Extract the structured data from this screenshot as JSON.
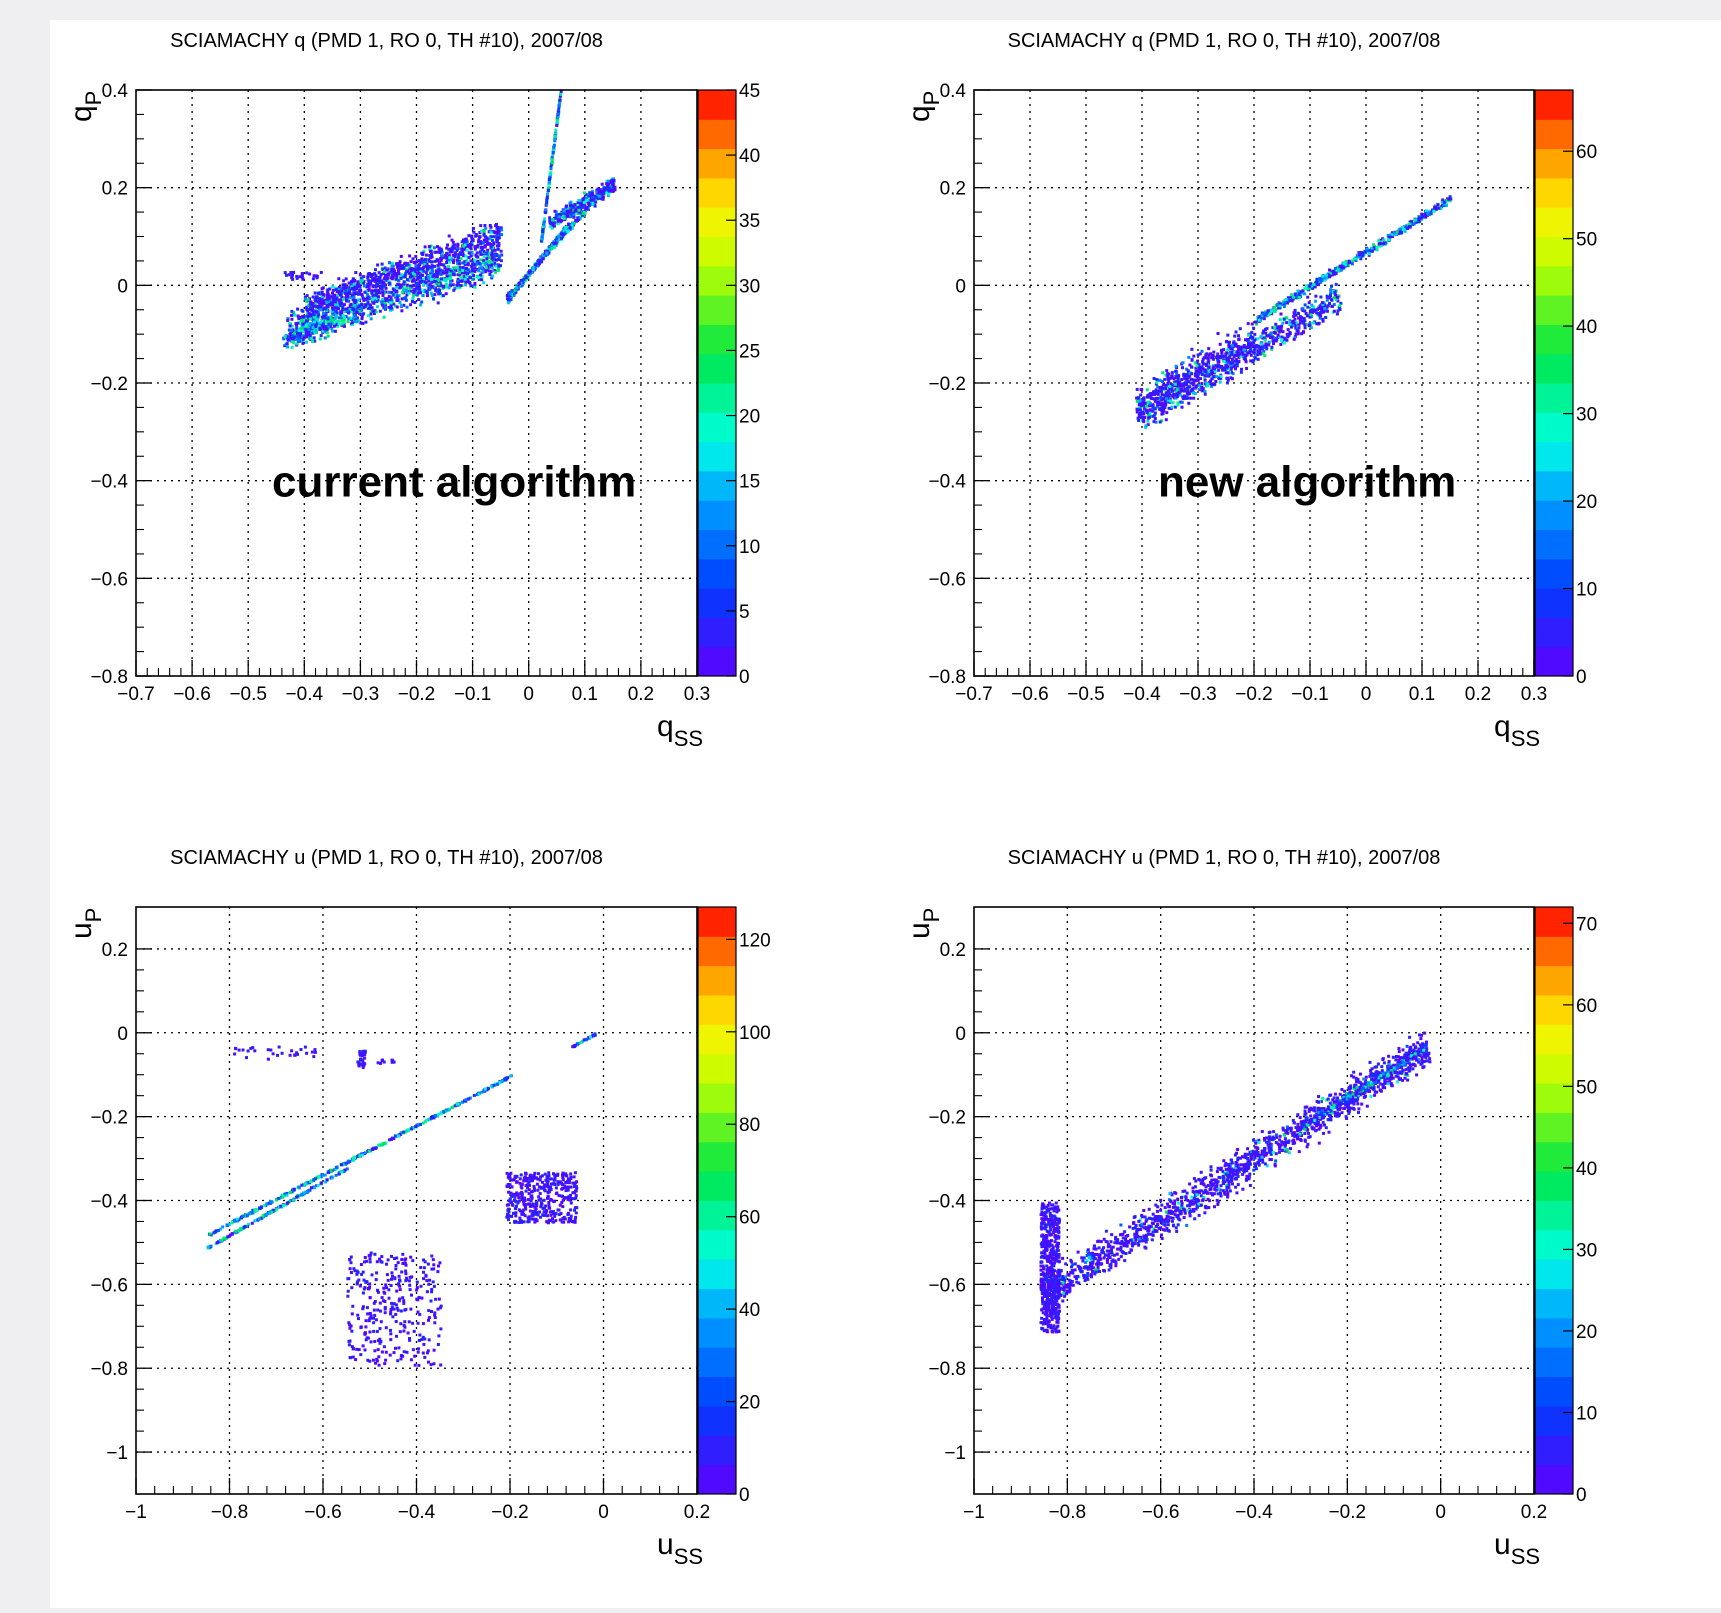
{
  "chart_data": [
    {
      "type": "heatmap",
      "title": "SCIAMACHY q (PMD 1, RO 0, TH #10), 2007/08",
      "ylabel": "q",
      "ylabel_sub": "P",
      "xlabel": "q",
      "xlabel_sub": "SS",
      "annotation": "current algorithm",
      "xlim": [
        -0.7,
        0.3
      ],
      "ylim": [
        -0.8,
        0.4
      ],
      "xticks": [
        -0.7,
        -0.6,
        -0.5,
        -0.4,
        -0.3,
        -0.2,
        -0.1,
        0,
        0.1,
        0.2,
        0.3
      ],
      "xtick_labels": [
        "−0.7",
        "−0.6",
        "−0.5",
        "−0.4",
        "−0.3",
        "−0.2",
        "−0.1",
        "0",
        "0.1",
        "0.2",
        "0.3"
      ],
      "yticks": [
        -0.8,
        -0.6,
        -0.4,
        -0.2,
        0,
        0.2,
        0.4
      ],
      "ytick_labels": [
        "−0.8",
        "−0.6",
        "−0.4",
        "−0.2",
        "0",
        "0.2",
        "0.4"
      ],
      "grid": true,
      "colorbar": {
        "min": 0,
        "max": 45,
        "ticks": [
          0,
          5,
          10,
          15,
          20,
          25,
          30,
          35,
          40,
          45
        ],
        "tick_labels": [
          "0",
          "5",
          "10",
          "15",
          "20",
          "25",
          "30",
          "35",
          "40",
          "45"
        ]
      },
      "clusters": [
        {
          "shape": "band",
          "x1": -0.43,
          "y1": -0.09,
          "x2": -0.05,
          "y2": 0.06,
          "width": 0.055,
          "n": 900,
          "core": 0.5
        },
        {
          "shape": "band",
          "x1": -0.4,
          "y1": -0.04,
          "x2": -0.05,
          "y2": 0.11,
          "width": 0.04,
          "n": 700,
          "core": 0.2
        },
        {
          "shape": "band",
          "x1": -0.44,
          "y1": -0.11,
          "x2": -0.3,
          "y2": -0.05,
          "width": 0.03,
          "n": 200,
          "core": 0.6
        },
        {
          "shape": "box",
          "x1": -0.44,
          "x2": -0.37,
          "y1": 0.015,
          "y2": 0.03,
          "n": 25,
          "core": 0.0
        },
        {
          "shape": "band",
          "x1": -0.04,
          "y1": -0.03,
          "x2": 0.07,
          "y2": 0.13,
          "width": 0.008,
          "n": 220,
          "core": 0.7
        },
        {
          "shape": "band",
          "x1": -0.04,
          "y1": -0.02,
          "x2": 0.15,
          "y2": 0.22,
          "width": 0.008,
          "n": 240,
          "core": 0.7
        },
        {
          "shape": "band",
          "x1": 0.02,
          "y1": 0.09,
          "x2": 0.055,
          "y2": 0.4,
          "width": 0.003,
          "n": 150,
          "core": 0.7
        },
        {
          "shape": "band",
          "x1": 0.035,
          "y1": 0.13,
          "x2": 0.15,
          "y2": 0.21,
          "width": 0.025,
          "n": 300,
          "core": 0.4
        }
      ]
    },
    {
      "type": "heatmap",
      "title": "SCIAMACHY q (PMD 1, RO 0, TH #10), 2007/08",
      "ylabel": "q",
      "ylabel_sub": "P",
      "xlabel": "q",
      "xlabel_sub": "SS",
      "annotation": "new algorithm",
      "xlim": [
        -0.7,
        0.3
      ],
      "ylim": [
        -0.8,
        0.4
      ],
      "xticks": [
        -0.7,
        -0.6,
        -0.5,
        -0.4,
        -0.3,
        -0.2,
        -0.1,
        0,
        0.1,
        0.2,
        0.3
      ],
      "xtick_labels": [
        "−0.7",
        "−0.6",
        "−0.5",
        "−0.4",
        "−0.3",
        "−0.2",
        "−0.1",
        "0",
        "0.1",
        "0.2",
        "0.3"
      ],
      "yticks": [
        -0.8,
        -0.6,
        -0.4,
        -0.2,
        0,
        0.2,
        0.4
      ],
      "ytick_labels": [
        "−0.8",
        "−0.6",
        "−0.4",
        "−0.2",
        "0",
        "0.2",
        "0.4"
      ],
      "grid": true,
      "colorbar": {
        "min": 0,
        "max": 67,
        "ticks": [
          0,
          10,
          20,
          30,
          40,
          50,
          60
        ],
        "tick_labels": [
          "0",
          "10",
          "20",
          "30",
          "40",
          "50",
          "60"
        ]
      },
      "clusters": [
        {
          "shape": "band",
          "x1": -0.41,
          "y1": -0.27,
          "x2": -0.05,
          "y2": -0.02,
          "width": 0.05,
          "n": 700,
          "core": 0.3
        },
        {
          "shape": "band",
          "x1": -0.41,
          "y1": -0.24,
          "x2": -0.2,
          "y2": -0.1,
          "width": 0.06,
          "n": 350,
          "core": 0.2
        },
        {
          "shape": "band",
          "x1": -0.2,
          "y1": -0.07,
          "x2": 0.15,
          "y2": 0.18,
          "width": 0.012,
          "n": 450,
          "core": 0.6
        }
      ]
    },
    {
      "type": "heatmap",
      "title": "SCIAMACHY u (PMD 1, RO 0, TH #10), 2007/08",
      "ylabel": "u",
      "ylabel_sub": "P",
      "xlabel": "u",
      "xlabel_sub": "SS",
      "xlim": [
        -1.0,
        0.2
      ],
      "ylim": [
        -1.1,
        0.3
      ],
      "xticks": [
        -1,
        -0.8,
        -0.6,
        -0.4,
        -0.2,
        0,
        0.2
      ],
      "xtick_labels": [
        "−1",
        "−0.8",
        "−0.6",
        "−0.4",
        "−0.2",
        "0",
        "0.2"
      ],
      "yticks": [
        -1,
        -0.8,
        -0.6,
        -0.4,
        -0.2,
        0,
        0.2
      ],
      "ytick_labels": [
        "−1",
        "−0.8",
        "−0.6",
        "−0.4",
        "−0.2",
        "0",
        "0.2"
      ],
      "grid": true,
      "colorbar": {
        "min": 0,
        "max": 127,
        "ticks": [
          0,
          20,
          40,
          60,
          80,
          100,
          120
        ],
        "tick_labels": [
          "0",
          "20",
          "40",
          "60",
          "80",
          "100",
          "120"
        ]
      },
      "clusters": [
        {
          "shape": "band",
          "x1": -0.85,
          "y1": -0.48,
          "x2": -0.2,
          "y2": -0.1,
          "width": 0.004,
          "n": 350,
          "core": 0.8
        },
        {
          "shape": "band",
          "x1": -0.85,
          "y1": -0.51,
          "x2": -0.55,
          "y2": -0.32,
          "width": 0.004,
          "n": 160,
          "core": 0.8
        },
        {
          "shape": "box",
          "x1": -0.8,
          "x2": -0.61,
          "y1": -0.06,
          "y2": -0.03,
          "n": 30,
          "core": 0.0
        },
        {
          "shape": "box",
          "x1": -0.53,
          "x2": -0.51,
          "y1": -0.08,
          "y2": -0.04,
          "n": 25,
          "core": 0.0
        },
        {
          "shape": "box",
          "x1": -0.5,
          "x2": -0.45,
          "y1": -0.07,
          "y2": -0.06,
          "n": 10,
          "core": 0.0
        },
        {
          "shape": "band",
          "x1": -0.07,
          "y1": -0.03,
          "x2": -0.02,
          "y2": 0.0,
          "width": 0.003,
          "n": 30,
          "core": 0.5
        },
        {
          "shape": "box",
          "x1": -0.21,
          "x2": -0.06,
          "y1": -0.45,
          "y2": -0.33,
          "n": 380,
          "core": 0.0
        },
        {
          "shape": "box",
          "x1": -0.55,
          "x2": -0.35,
          "y1": -0.79,
          "y2": -0.52,
          "n": 320,
          "core": 0.0
        }
      ]
    },
    {
      "type": "heatmap",
      "title": "SCIAMACHY u (PMD 1, RO 0, TH #10), 2007/08",
      "ylabel": "u",
      "ylabel_sub": "P",
      "xlabel": "u",
      "xlabel_sub": "SS",
      "xlim": [
        -1.0,
        0.2
      ],
      "ylim": [
        -1.1,
        0.3
      ],
      "xticks": [
        -1,
        -0.8,
        -0.6,
        -0.4,
        -0.2,
        0,
        0.2
      ],
      "xtick_labels": [
        "−1",
        "−0.8",
        "−0.6",
        "−0.4",
        "−0.2",
        "0",
        "0.2"
      ],
      "yticks": [
        -1,
        -0.8,
        -0.6,
        -0.4,
        -0.2,
        0,
        0.2
      ],
      "ytick_labels": [
        "−1",
        "−0.8",
        "−0.6",
        "−0.4",
        "−0.2",
        "0",
        "0.2"
      ],
      "grid": true,
      "colorbar": {
        "min": 0,
        "max": 72,
        "ticks": [
          0,
          10,
          20,
          30,
          40,
          50,
          60,
          70
        ],
        "tick_labels": [
          "0",
          "10",
          "20",
          "30",
          "40",
          "50",
          "60",
          "70"
        ]
      },
      "clusters": [
        {
          "shape": "band",
          "x1": -0.85,
          "y1": -0.62,
          "x2": -0.03,
          "y2": -0.03,
          "width": 0.07,
          "n": 1500,
          "core": 0.1
        },
        {
          "shape": "box",
          "x1": -0.86,
          "x2": -0.82,
          "y1": -0.71,
          "y2": -0.4,
          "n": 500,
          "core": 0.0
        },
        {
          "shape": "band",
          "x1": -0.3,
          "y1": -0.22,
          "x2": -0.03,
          "y2": -0.03,
          "width": 0.015,
          "n": 300,
          "core": 0.5
        }
      ]
    }
  ]
}
